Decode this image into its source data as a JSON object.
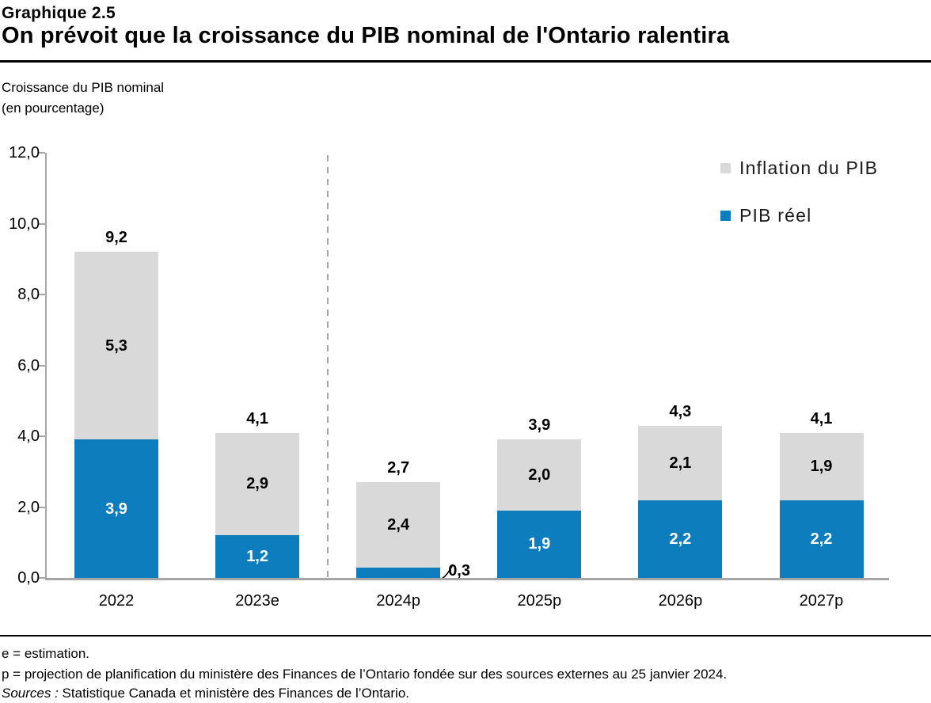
{
  "header": {
    "kicker": "Graphique 2.5",
    "title": "On prévoit que la croissance du PIB nominal de l'Ontario ralentira"
  },
  "axis_title": {
    "line1": "Croissance du PIB nominal",
    "line2": "(en pourcentage)"
  },
  "legend": {
    "position": "top-right",
    "items": [
      {
        "label": "Inflation du PIB",
        "color": "#d9d9d9"
      },
      {
        "label": "PIB réel",
        "color": "#0d7dbe"
      }
    ]
  },
  "chart_data": {
    "type": "bar",
    "stacked": true,
    "title": "On prévoit que la croissance du PIB nominal de l'Ontario ralentira",
    "ylabel": "Croissance du PIB nominal (en pourcentage)",
    "categories": [
      "2022",
      "2023e",
      "2024p",
      "2025p",
      "2026p",
      "2027p"
    ],
    "series": [
      {
        "name": "PIB réel",
        "color": "#0d7dbe",
        "values": [
          3.9,
          1.2,
          0.3,
          1.9,
          2.2,
          2.2
        ]
      },
      {
        "name": "Inflation du PIB",
        "color": "#d9d9d9",
        "values": [
          5.3,
          2.9,
          2.4,
          2.0,
          2.1,
          1.9
        ]
      }
    ],
    "totals": [
      9.2,
      4.1,
      2.7,
      3.9,
      4.3,
      4.1
    ],
    "ylim": [
      0,
      12
    ],
    "ytick_labels": [
      "0,0",
      "2,0",
      "4,0",
      "6,0",
      "8,0",
      "10,0",
      "12,0"
    ],
    "decimal_separator": ",",
    "grid": false,
    "divider_after_category_index": 1,
    "outside_label": {
      "category_index": 2,
      "series": "PIB réel",
      "text": "0,3"
    },
    "axis_color": "#a6a6a6",
    "label_color_on_blue": "#ffffff",
    "label_color_on_gray": "#000000"
  },
  "footnotes": {
    "line1": "e = estimation.",
    "line2": "p = projection de planification du ministère des Finances de l’Ontario fondée sur des sources externes au 25 janvier 2024.",
    "sources_label": "Sources :",
    "sources_text": "Statistique Canada et ministère des Finances de l’Ontario."
  }
}
